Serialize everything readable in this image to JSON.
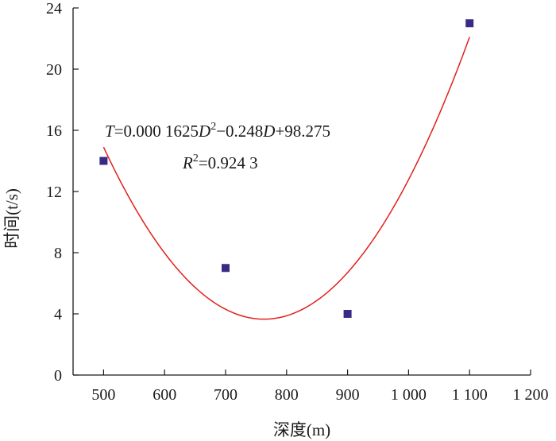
{
  "chart_data": {
    "type": "scatter",
    "xlabel": "深度(m)",
    "ylabel": "时间(t/s)",
    "xlim": [
      450,
      1200
    ],
    "ylim": [
      0,
      24
    ],
    "x_ticks": [
      {
        "value": 500,
        "label": "500"
      },
      {
        "value": 600,
        "label": "600"
      },
      {
        "value": 700,
        "label": "700"
      },
      {
        "value": 800,
        "label": "800"
      },
      {
        "value": 900,
        "label": "900"
      },
      {
        "value": 1000,
        "label": "1 000"
      },
      {
        "value": 1100,
        "label": "1 100"
      },
      {
        "value": 1200,
        "label": "1 200"
      }
    ],
    "y_ticks": [
      {
        "value": 0,
        "label": "0"
      },
      {
        "value": 4,
        "label": "4"
      },
      {
        "value": 8,
        "label": "8"
      },
      {
        "value": 12,
        "label": "12"
      },
      {
        "value": 16,
        "label": "16"
      },
      {
        "value": 20,
        "label": "20"
      },
      {
        "value": 24,
        "label": "24"
      }
    ],
    "points": [
      {
        "x": 500,
        "y": 14
      },
      {
        "x": 700,
        "y": 7
      },
      {
        "x": 900,
        "y": 4
      },
      {
        "x": 1100,
        "y": 23
      }
    ],
    "fit": {
      "kind": "quadratic",
      "coefficients": {
        "a": 0.0001625,
        "b": -0.248,
        "c": 98.275
      },
      "x_range": [
        500,
        1100
      ]
    },
    "annotations": {
      "equation": {
        "T": "T",
        "eq1": "=0.000 1625",
        "D1": "D",
        "sup": "2",
        "minus": "−0.248",
        "D2": "D",
        "eq2": "+98.275"
      },
      "r2": {
        "R": "R",
        "sup": "2",
        "value": "=0.924 3"
      }
    },
    "colors": {
      "marker": "#3b2a85",
      "fit_line": "#e0201b",
      "axis": "#1a1a1a"
    },
    "grid": false,
    "legend": "none"
  }
}
